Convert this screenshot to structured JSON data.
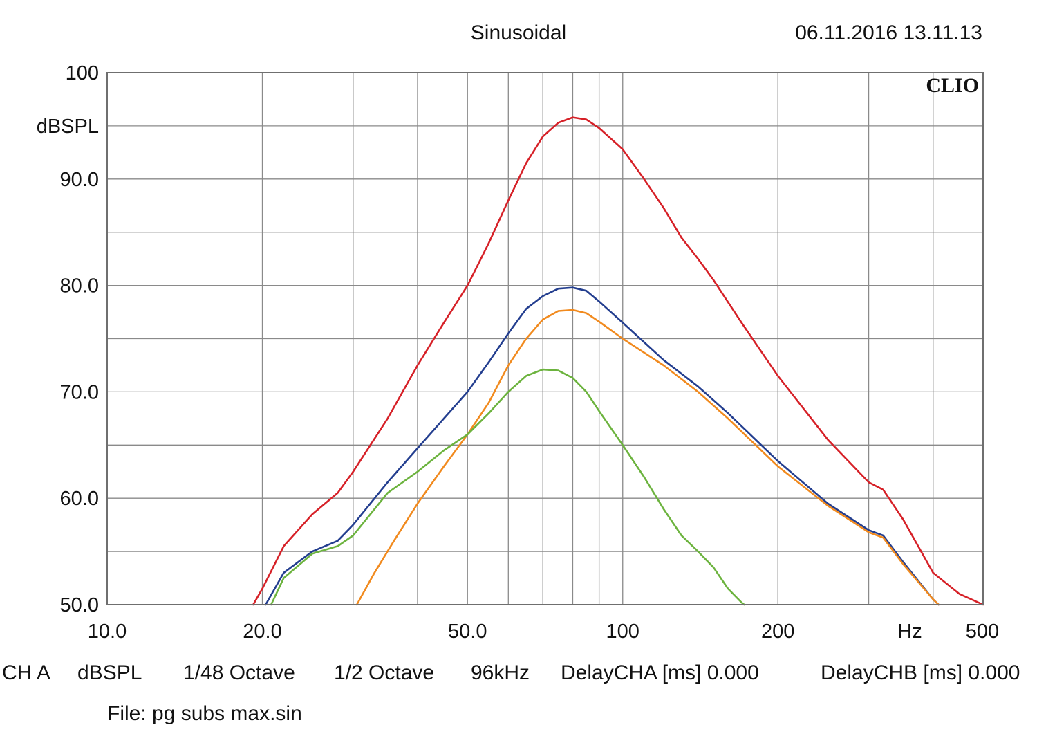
{
  "header": {
    "title": "Sinusoidal",
    "timestamp": "06.11.2016 13.11.13",
    "brand": "CLIO"
  },
  "footer": {
    "settings": [
      "CH A",
      "dBSPL",
      "1/48 Octave",
      "1/2 Octave",
      "96kHz",
      "DelayCHA [ms] 0.000",
      "DelayCHB [ms] 0.000"
    ],
    "file": "File: pg subs max.sin"
  },
  "chart_data": {
    "type": "line",
    "title": "Sinusoidal",
    "xlabel": "Hz",
    "ylabel": "dBSPL",
    "x_scale": "log",
    "xlim": [
      10,
      500
    ],
    "ylim": [
      50,
      100
    ],
    "grid": true,
    "x_ticks": [
      {
        "value": 10,
        "label": "10.0"
      },
      {
        "value": 20,
        "label": "20.0"
      },
      {
        "value": 50,
        "label": "50.0"
      },
      {
        "value": 100,
        "label": "100"
      },
      {
        "value": 200,
        "label": "200"
      },
      {
        "value": 500,
        "label": "500"
      }
    ],
    "y_ticks": [
      {
        "value": 100,
        "label": "100"
      },
      {
        "value": 90,
        "label": "90.0"
      },
      {
        "value": 80,
        "label": "80.0"
      },
      {
        "value": 70,
        "label": "70.0"
      },
      {
        "value": 60,
        "label": "60.0"
      },
      {
        "value": 50,
        "label": "50.0"
      }
    ],
    "series": [
      {
        "color": "#d62027",
        "points": [
          [
            19.2,
            50
          ],
          [
            20,
            51.5
          ],
          [
            22,
            55.5
          ],
          [
            25,
            58.5
          ],
          [
            28,
            60.5
          ],
          [
            30,
            62.5
          ],
          [
            35,
            67.5
          ],
          [
            40,
            72.5
          ],
          [
            45,
            76.5
          ],
          [
            50,
            80
          ],
          [
            55,
            84
          ],
          [
            60,
            88
          ],
          [
            65,
            91.5
          ],
          [
            70,
            94
          ],
          [
            75,
            95.3
          ],
          [
            80,
            95.8
          ],
          [
            85,
            95.6
          ],
          [
            90,
            94.8
          ],
          [
            100,
            92.8
          ],
          [
            110,
            90
          ],
          [
            120,
            87.3
          ],
          [
            130,
            84.5
          ],
          [
            140,
            82.5
          ],
          [
            150,
            80.5
          ],
          [
            170,
            76.5
          ],
          [
            200,
            71.5
          ],
          [
            250,
            65.5
          ],
          [
            300,
            61.5
          ],
          [
            320,
            60.8
          ],
          [
            350,
            58
          ],
          [
            400,
            53
          ],
          [
            450,
            51
          ],
          [
            500,
            50
          ]
        ]
      },
      {
        "color": "#233e8f",
        "points": [
          [
            20.3,
            50
          ],
          [
            22,
            53
          ],
          [
            25,
            55
          ],
          [
            28,
            56
          ],
          [
            30,
            57.5
          ],
          [
            35,
            61.5
          ],
          [
            40,
            64.7
          ],
          [
            45,
            67.5
          ],
          [
            50,
            70
          ],
          [
            55,
            72.8
          ],
          [
            60,
            75.5
          ],
          [
            65,
            77.8
          ],
          [
            70,
            79
          ],
          [
            75,
            79.7
          ],
          [
            80,
            79.8
          ],
          [
            85,
            79.5
          ],
          [
            90,
            78.5
          ],
          [
            100,
            76.5
          ],
          [
            120,
            73
          ],
          [
            140,
            70.5
          ],
          [
            160,
            68
          ],
          [
            200,
            63.5
          ],
          [
            250,
            59.5
          ],
          [
            300,
            57
          ],
          [
            320,
            56.5
          ],
          [
            350,
            54
          ],
          [
            400,
            50.5
          ],
          [
            410,
            50
          ]
        ]
      },
      {
        "color": "#f18a1e",
        "points": [
          [
            30.5,
            50
          ],
          [
            33,
            53
          ],
          [
            36,
            56
          ],
          [
            40,
            59.5
          ],
          [
            45,
            63
          ],
          [
            50,
            66
          ],
          [
            55,
            69
          ],
          [
            60,
            72.5
          ],
          [
            65,
            75
          ],
          [
            70,
            76.8
          ],
          [
            75,
            77.6
          ],
          [
            80,
            77.7
          ],
          [
            85,
            77.4
          ],
          [
            90,
            76.6
          ],
          [
            100,
            75
          ],
          [
            120,
            72.5
          ],
          [
            140,
            70
          ],
          [
            160,
            67.5
          ],
          [
            200,
            63
          ],
          [
            250,
            59.3
          ],
          [
            300,
            56.8
          ],
          [
            320,
            56.3
          ],
          [
            350,
            53.8
          ],
          [
            400,
            50.5
          ],
          [
            410,
            50
          ]
        ]
      },
      {
        "color": "#6cb33e",
        "points": [
          [
            20.8,
            50
          ],
          [
            22,
            52.5
          ],
          [
            25,
            54.8
          ],
          [
            28,
            55.5
          ],
          [
            30,
            56.5
          ],
          [
            35,
            60.5
          ],
          [
            40,
            62.5
          ],
          [
            45,
            64.5
          ],
          [
            50,
            66
          ],
          [
            55,
            68
          ],
          [
            60,
            70
          ],
          [
            65,
            71.5
          ],
          [
            70,
            72.1
          ],
          [
            75,
            72
          ],
          [
            80,
            71.3
          ],
          [
            85,
            70
          ],
          [
            90,
            68.2
          ],
          [
            100,
            65
          ],
          [
            110,
            62
          ],
          [
            120,
            59
          ],
          [
            130,
            56.5
          ],
          [
            140,
            55
          ],
          [
            150,
            53.5
          ],
          [
            160,
            51.5
          ],
          [
            170,
            50.2
          ],
          [
            172,
            50
          ]
        ]
      }
    ]
  }
}
